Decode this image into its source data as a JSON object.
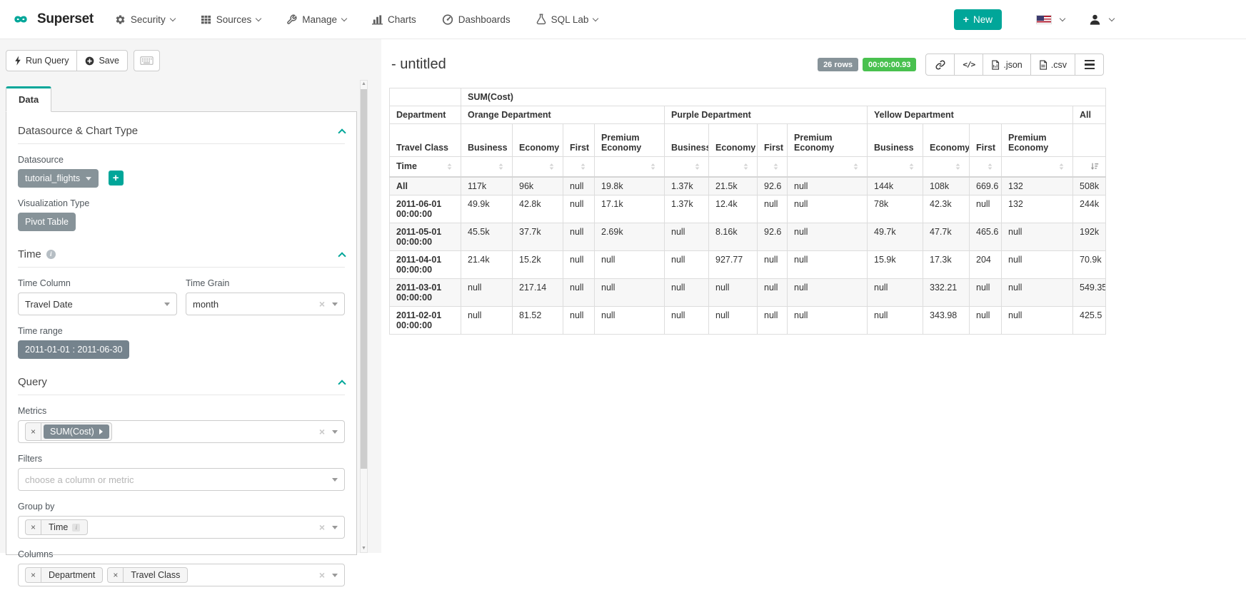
{
  "colors": {
    "accent_teal": "#00a699",
    "badge_green": "#49c14f",
    "pill_gray": "#879399",
    "pill_dark_gray": "#75838d"
  },
  "navbar": {
    "brand": "Superset",
    "items": [
      {
        "label": "Security",
        "icon": "gears-icon",
        "has_caret": true
      },
      {
        "label": "Sources",
        "icon": "table-icon",
        "has_caret": true
      },
      {
        "label": "Manage",
        "icon": "wrench-icon",
        "has_caret": true
      },
      {
        "label": "Charts",
        "icon": "bar-chart-icon",
        "has_caret": false
      },
      {
        "label": "Dashboards",
        "icon": "dashboard-icon",
        "has_caret": false
      },
      {
        "label": "SQL Lab",
        "icon": "flask-icon",
        "has_caret": true
      }
    ],
    "new_button_label": "New",
    "language": "us-flag"
  },
  "toolbar": {
    "run_query_label": "Run Query",
    "save_label": "Save"
  },
  "tabs": {
    "data_label": "Data"
  },
  "sections": {
    "datasource": {
      "title": "Datasource & Chart Type",
      "datasource_label": "Datasource",
      "datasource_value": "tutorial_flights",
      "visualization_label": "Visualization Type",
      "visualization_value": "Pivot Table"
    },
    "time": {
      "title": "Time",
      "time_column_label": "Time Column",
      "time_column_value": "Travel Date",
      "time_grain_label": "Time Grain",
      "time_grain_value": "month",
      "time_range_label": "Time range",
      "time_range_value": "2011-01-01 : 2011-06-30"
    },
    "query": {
      "title": "Query",
      "metrics_label": "Metrics",
      "metrics_value": "SUM(Cost)",
      "filters_label": "Filters",
      "filters_placeholder": "choose a column or metric",
      "groupby_label": "Group by",
      "groupby_value": "Time",
      "columns_label": "Columns",
      "columns_values": [
        "Department",
        "Travel Class"
      ]
    }
  },
  "result": {
    "title": "- untitled",
    "rows_badge": "26 rows",
    "duration_badge": "00:00:00.93",
    "export": {
      "json_label": ".json",
      "csv_label": ".csv"
    }
  },
  "chart_data": {
    "type": "table",
    "metric": "SUM(Cost)",
    "col_axis": "Department",
    "col_axis2": "Travel Class",
    "row_axis": "Time",
    "column_groups": [
      {
        "department": "Orange Department",
        "travel_classes": [
          "Business",
          "Economy",
          "First",
          "Premium Economy"
        ]
      },
      {
        "department": "Purple Department",
        "travel_classes": [
          "Business",
          "Economy",
          "First",
          "Premium Economy"
        ]
      },
      {
        "department": "Yellow Department",
        "travel_classes": [
          "Business",
          "Economy",
          "First",
          "Premium Economy"
        ]
      },
      {
        "department": "All",
        "travel_classes": [
          ""
        ]
      }
    ],
    "sort": {
      "column": "All",
      "direction": "desc"
    },
    "rows": [
      {
        "time": "All",
        "values": [
          "117k",
          "96k",
          "null",
          "19.8k",
          "1.37k",
          "21.5k",
          "92.6",
          "null",
          "144k",
          "108k",
          "669.6",
          "132",
          "508k"
        ]
      },
      {
        "time": "2011-06-01 00:00:00",
        "values": [
          "49.9k",
          "42.8k",
          "null",
          "17.1k",
          "1.37k",
          "12.4k",
          "null",
          "null",
          "78k",
          "42.3k",
          "null",
          "132",
          "244k"
        ]
      },
      {
        "time": "2011-05-01 00:00:00",
        "values": [
          "45.5k",
          "37.7k",
          "null",
          "2.69k",
          "null",
          "8.16k",
          "92.6",
          "null",
          "49.7k",
          "47.7k",
          "465.6",
          "null",
          "192k"
        ]
      },
      {
        "time": "2011-04-01 00:00:00",
        "values": [
          "21.4k",
          "15.2k",
          "null",
          "null",
          "null",
          "927.77",
          "null",
          "null",
          "15.9k",
          "17.3k",
          "204",
          "null",
          "70.9k"
        ]
      },
      {
        "time": "2011-03-01 00:00:00",
        "values": [
          "null",
          "217.14",
          "null",
          "null",
          "null",
          "null",
          "null",
          "null",
          "null",
          "332.21",
          "null",
          "null",
          "549.35"
        ]
      },
      {
        "time": "2011-02-01 00:00:00",
        "values": [
          "null",
          "81.52",
          "null",
          "null",
          "null",
          "null",
          "null",
          "null",
          "null",
          "343.98",
          "null",
          "null",
          "425.5"
        ]
      }
    ]
  }
}
